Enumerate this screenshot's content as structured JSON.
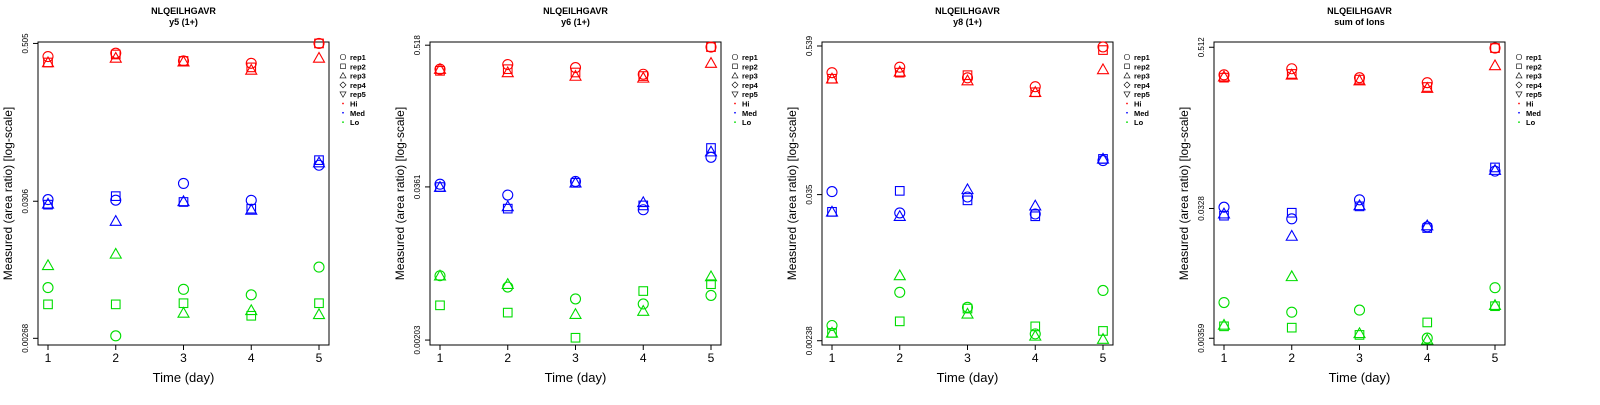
{
  "figure": {
    "background": "#ffffff"
  },
  "colors": {
    "Hi": "#ff0000",
    "Med": "#0000ff",
    "Lo": "#00dd00",
    "axis": "#000000"
  },
  "legend": {
    "items": [
      {
        "label": "rep1",
        "symbol": "circle"
      },
      {
        "label": "rep2",
        "symbol": "square"
      },
      {
        "label": "rep3",
        "symbol": "triangle-up"
      },
      {
        "label": "rep4",
        "symbol": "diamond"
      },
      {
        "label": "rep5",
        "symbol": "triangle-down"
      },
      {
        "label": "Hi",
        "symbol": "dot",
        "color": "#ff0000"
      },
      {
        "label": "Med",
        "symbol": "dot",
        "color": "#0000ff"
      },
      {
        "label": "Lo",
        "symbol": "dot",
        "color": "#00dd00"
      }
    ]
  },
  "chart_data": [
    {
      "type": "scatter",
      "title": "NLQEILHGAVR",
      "subtitle": "y5 (1+)",
      "xlabel": "Time (day)",
      "ylabel": "Measured (area ratio) [log-scale]",
      "xlim": [
        1,
        5
      ],
      "ylim": [
        0.00238,
        0.518
      ],
      "xticks": [
        1,
        2,
        3,
        4,
        5
      ],
      "yticks": [
        0.00268,
        0.0306,
        0.505
      ],
      "series": [
        {
          "level": "Hi",
          "rep": "rep1",
          "x": [
            1,
            2,
            3,
            4,
            5
          ],
          "y": [
            0.4,
            0.425,
            0.37,
            0.355,
            0.505
          ]
        },
        {
          "level": "Hi",
          "rep": "rep2",
          "x": [
            1,
            2,
            3,
            4,
            5
          ],
          "y": [
            0.36,
            0.415,
            0.37,
            0.33,
            0.505
          ]
        },
        {
          "level": "Hi",
          "rep": "rep3",
          "x": [
            1,
            2,
            3,
            4,
            5
          ],
          "y": [
            0.36,
            0.39,
            0.365,
            0.315,
            0.39
          ]
        },
        {
          "level": "Med",
          "rep": "rep1",
          "x": [
            1,
            2,
            3,
            4,
            5
          ],
          "y": [
            0.0315,
            0.0312,
            0.042,
            0.0311,
            0.058
          ]
        },
        {
          "level": "Med",
          "rep": "rep2",
          "x": [
            1,
            2,
            3,
            4,
            5
          ],
          "y": [
            0.0288,
            0.0335,
            0.0302,
            0.0268,
            0.0635
          ]
        },
        {
          "level": "Med",
          "rep": "rep3",
          "x": [
            1,
            2,
            3,
            4,
            5
          ],
          "y": [
            0.0292,
            0.0215,
            0.0305,
            0.0262,
            0.0608
          ]
        },
        {
          "level": "Lo",
          "rep": "rep1",
          "x": [
            1,
            2,
            3,
            4,
            5
          ],
          "y": [
            0.0066,
            0.0028,
            0.0064,
            0.0058,
            0.0095
          ]
        },
        {
          "level": "Lo",
          "rep": "rep2",
          "x": [
            1,
            2,
            3,
            4,
            5
          ],
          "y": [
            0.0049,
            0.0049,
            0.005,
            0.004,
            0.005
          ]
        },
        {
          "level": "Lo",
          "rep": "rep3",
          "x": [
            1,
            2,
            3,
            4,
            5
          ],
          "y": [
            0.0098,
            0.012,
            0.0042,
            0.0044,
            0.0041
          ]
        }
      ]
    },
    {
      "type": "scatter",
      "title": "NLQEILHGAVR",
      "subtitle": "y6 (1+)",
      "xlabel": "Time (day)",
      "ylabel": "Measured (area ratio) [log-scale]",
      "xlim": [
        1,
        5
      ],
      "ylim": [
        0.00185,
        0.55
      ],
      "xticks": [
        1,
        2,
        3,
        4,
        5
      ],
      "yticks": [
        0.00203,
        0.0361,
        0.518
      ],
      "series": [
        {
          "level": "Hi",
          "rep": "rep1",
          "x": [
            1,
            2,
            3,
            4,
            5
          ],
          "y": [
            0.33,
            0.36,
            0.34,
            0.3,
            0.5
          ]
        },
        {
          "level": "Hi",
          "rep": "rep2",
          "x": [
            1,
            2,
            3,
            4,
            5
          ],
          "y": [
            0.32,
            0.33,
            0.31,
            0.29,
            0.5
          ]
        },
        {
          "level": "Hi",
          "rep": "rep3",
          "x": [
            1,
            2,
            3,
            4,
            5
          ],
          "y": [
            0.33,
            0.31,
            0.29,
            0.28,
            0.37
          ]
        },
        {
          "level": "Med",
          "rep": "rep1",
          "x": [
            1,
            2,
            3,
            4,
            5
          ],
          "y": [
            0.038,
            0.031,
            0.04,
            0.0235,
            0.063
          ]
        },
        {
          "level": "Med",
          "rep": "rep2",
          "x": [
            1,
            2,
            3,
            4,
            5
          ],
          "y": [
            0.036,
            0.024,
            0.039,
            0.0255,
            0.075
          ]
        },
        {
          "level": "Med",
          "rep": "rep3",
          "x": [
            1,
            2,
            3,
            4,
            5
          ],
          "y": [
            0.036,
            0.025,
            0.039,
            0.027,
            0.07
          ]
        },
        {
          "level": "Lo",
          "rep": "rep1",
          "x": [
            1,
            2,
            3,
            4,
            5
          ],
          "y": [
            0.0068,
            0.0055,
            0.0044,
            0.004,
            0.0047
          ]
        },
        {
          "level": "Lo",
          "rep": "rep2",
          "x": [
            1,
            2,
            3,
            4,
            5
          ],
          "y": [
            0.0039,
            0.0034,
            0.00212,
            0.0051,
            0.0058
          ]
        },
        {
          "level": "Lo",
          "rep": "rep3",
          "x": [
            1,
            2,
            3,
            4,
            5
          ],
          "y": [
            0.0068,
            0.0058,
            0.0033,
            0.0035,
            0.0067
          ]
        }
      ]
    },
    {
      "type": "scatter",
      "title": "NLQEILHGAVR",
      "subtitle": "y8 (1+)",
      "xlabel": "Time (day)",
      "ylabel": "Measured (area ratio) [log-scale]",
      "xlim": [
        1,
        5
      ],
      "ylim": [
        0.0022,
        0.58
      ],
      "xticks": [
        1,
        2,
        3,
        4,
        5
      ],
      "yticks": [
        0.00238,
        0.035,
        0.539
      ],
      "series": [
        {
          "level": "Hi",
          "rep": "rep1",
          "x": [
            1,
            2,
            3,
            4,
            5
          ],
          "y": [
            0.33,
            0.365,
            0.3,
            0.255,
            0.53
          ]
        },
        {
          "level": "Hi",
          "rep": "rep2",
          "x": [
            1,
            2,
            3,
            4,
            5
          ],
          "y": [
            0.295,
            0.33,
            0.315,
            0.23,
            0.5
          ]
        },
        {
          "level": "Hi",
          "rep": "rep3",
          "x": [
            1,
            2,
            3,
            4,
            5
          ],
          "y": [
            0.295,
            0.335,
            0.285,
            0.23,
            0.35
          ]
        },
        {
          "level": "Med",
          "rep": "rep1",
          "x": [
            1,
            2,
            3,
            4,
            5
          ],
          "y": [
            0.037,
            0.025,
            0.0335,
            0.0245,
            0.0655
          ]
        },
        {
          "level": "Med",
          "rep": "rep2",
          "x": [
            1,
            2,
            3,
            4,
            5
          ],
          "y": [
            0.0255,
            0.0375,
            0.0315,
            0.0235,
            0.0675
          ]
        },
        {
          "level": "Med",
          "rep": "rep3",
          "x": [
            1,
            2,
            3,
            4,
            5
          ],
          "y": [
            0.0255,
            0.0235,
            0.0385,
            0.0285,
            0.0675
          ]
        },
        {
          "level": "Lo",
          "rep": "rep1",
          "x": [
            1,
            2,
            3,
            4,
            5
          ],
          "y": [
            0.00315,
            0.0058,
            0.0044,
            0.0027,
            0.006
          ]
        },
        {
          "level": "Lo",
          "rep": "rep2",
          "x": [
            1,
            2,
            3,
            4,
            5
          ],
          "y": [
            0.00275,
            0.0034,
            0.0043,
            0.0031,
            0.00285
          ]
        },
        {
          "level": "Lo",
          "rep": "rep3",
          "x": [
            1,
            2,
            3,
            4,
            5
          ],
          "y": [
            0.00275,
            0.0079,
            0.0039,
            0.0026,
            0.00245
          ]
        }
      ]
    },
    {
      "type": "scatter",
      "title": "NLQEILHGAVR",
      "subtitle": "sum of Ions",
      "xlabel": "Time (day)",
      "ylabel": "Measured (area ratio) [log-scale]",
      "xlim": [
        1,
        5
      ],
      "ylim": [
        0.0032,
        0.56
      ],
      "xticks": [
        1,
        2,
        3,
        4,
        5
      ],
      "yticks": [
        0.00359,
        0.0328,
        0.512
      ],
      "series": [
        {
          "level": "Hi",
          "rep": "rep1",
          "x": [
            1,
            2,
            3,
            4,
            5
          ],
          "y": [
            0.32,
            0.355,
            0.305,
            0.28,
            0.505
          ]
        },
        {
          "level": "Hi",
          "rep": "rep2",
          "x": [
            1,
            2,
            3,
            4,
            5
          ],
          "y": [
            0.305,
            0.325,
            0.295,
            0.26,
            0.505
          ]
        },
        {
          "level": "Hi",
          "rep": "rep3",
          "x": [
            1,
            2,
            3,
            4,
            5
          ],
          "y": [
            0.31,
            0.32,
            0.29,
            0.255,
            0.375
          ]
        },
        {
          "level": "Med",
          "rep": "rep1",
          "x": [
            1,
            2,
            3,
            4,
            5
          ],
          "y": [
            0.0335,
            0.0275,
            0.038,
            0.024,
            0.062
          ]
        },
        {
          "level": "Med",
          "rep": "rep2",
          "x": [
            1,
            2,
            3,
            4,
            5
          ],
          "y": [
            0.029,
            0.0305,
            0.034,
            0.0235,
            0.066
          ]
        },
        {
          "level": "Med",
          "rep": "rep3",
          "x": [
            1,
            2,
            3,
            4,
            5
          ],
          "y": [
            0.03,
            0.0205,
            0.0345,
            0.0245,
            0.063
          ]
        },
        {
          "level": "Lo",
          "rep": "rep1",
          "x": [
            1,
            2,
            3,
            4,
            5
          ],
          "y": [
            0.0066,
            0.0056,
            0.0058,
            0.0036,
            0.0085
          ]
        },
        {
          "level": "Lo",
          "rep": "rep2",
          "x": [
            1,
            2,
            3,
            4,
            5
          ],
          "y": [
            0.0044,
            0.0043,
            0.0038,
            0.0047,
            0.0062
          ]
        },
        {
          "level": "Lo",
          "rep": "rep3",
          "x": [
            1,
            2,
            3,
            4,
            5
          ],
          "y": [
            0.0045,
            0.0103,
            0.0039,
            0.0035,
            0.0063
          ]
        }
      ]
    }
  ]
}
